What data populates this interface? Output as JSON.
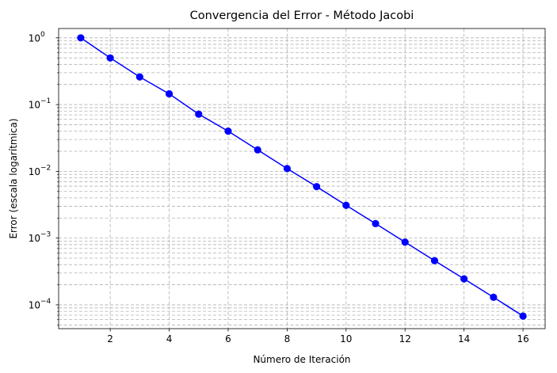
{
  "chart_data": {
    "type": "line",
    "title": "Convergencia del Error - Método Jacobi",
    "xlabel": "Número de Iteración",
    "ylabel": "Error (escala logarítmica)",
    "y_scale": "log",
    "grid": true,
    "grid_style": "dashed",
    "xlim": [
      0.25,
      16.75
    ],
    "ylim": [
      4.4e-05,
      1.38
    ],
    "x_ticks": [
      2,
      4,
      6,
      8,
      10,
      12,
      14,
      16
    ],
    "y_ticks": [
      {
        "value": 1,
        "label": "10",
        "exponent": "0"
      },
      {
        "value": 0.1,
        "label": "10",
        "exponent": "−1"
      },
      {
        "value": 0.01,
        "label": "10",
        "exponent": "−2"
      },
      {
        "value": 0.001,
        "label": "10",
        "exponent": "−3"
      },
      {
        "value": 0.0001,
        "label": "10",
        "exponent": "−4"
      }
    ],
    "series": [
      {
        "color": "#0000ff",
        "marker": "circle",
        "x": [
          1,
          2,
          3,
          4,
          5,
          6,
          7,
          8,
          9,
          10,
          11,
          12,
          13,
          14,
          15,
          16
        ],
        "y": [
          1.0,
          0.5,
          0.26,
          0.145,
          0.072,
          0.04,
          0.021,
          0.011,
          0.0059,
          0.0031,
          0.00165,
          0.00087,
          0.00046,
          0.000245,
          0.00013,
          6.8e-05
        ]
      }
    ]
  }
}
